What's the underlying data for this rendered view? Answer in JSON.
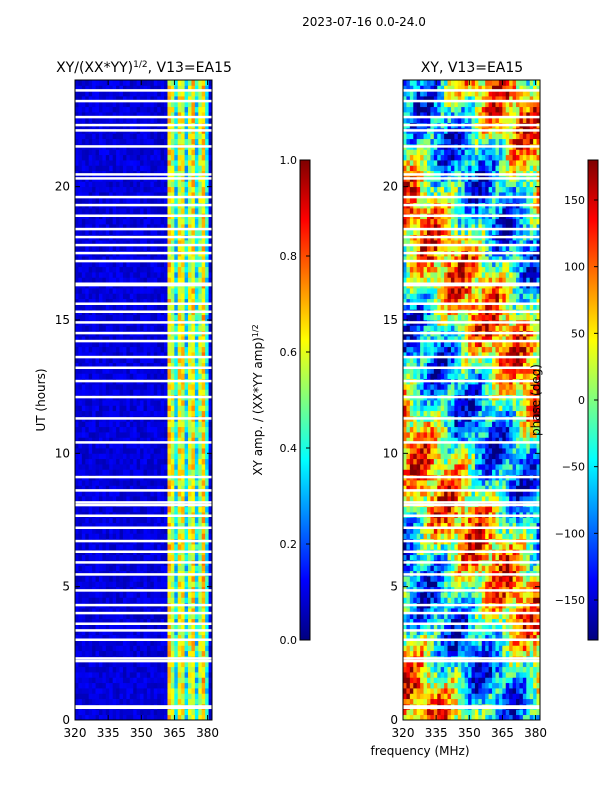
{
  "suptitle": "2023-07-16 0.0-24.0",
  "colors": {
    "jet": [
      "#00007f",
      "#0000ff",
      "#007fff",
      "#00ffff",
      "#7fff7f",
      "#ffff00",
      "#ff7f00",
      "#ff0000",
      "#7f0000"
    ],
    "flagged": "#ffffff",
    "axis": "#000000"
  },
  "chart_data": [
    {
      "type": "heatmap",
      "title_main": "XY/(XX*YY)",
      "title_sup": "1/2",
      "title_tail": ", V13=EA15",
      "xlabel": "",
      "ylabel": "UT (hours)",
      "xlim": [
        320,
        382
      ],
      "ylim": [
        0,
        24
      ],
      "x_ticks": [
        320,
        335,
        350,
        365,
        380
      ],
      "x_tick_labels": [
        "320",
        "335",
        "350",
        "365",
        "380"
      ],
      "y_ticks": [
        0,
        5,
        10,
        15,
        20
      ],
      "y_tick_labels": [
        "0",
        "5",
        "10",
        "15",
        "20"
      ],
      "colorbar": {
        "label_main": "XY amp. / (XX*YY amp)",
        "label_sup": "1/2",
        "range": [
          0.0,
          1.0
        ],
        "ticks": [
          0.0,
          0.2,
          0.4,
          0.6,
          0.8,
          1.0
        ],
        "tick_labels": [
          "0.0",
          "0.2",
          "0.4",
          "0.6",
          "0.8",
          "1.0"
        ]
      }
    },
    {
      "type": "heatmap",
      "title_main": "XY, V13=EA15",
      "xlabel": "frequency (MHz)",
      "ylabel": "",
      "xlim": [
        320,
        382
      ],
      "ylim": [
        0,
        24
      ],
      "x_ticks": [
        320,
        335,
        350,
        365,
        380
      ],
      "x_tick_labels": [
        "320",
        "335",
        "350",
        "365",
        "380"
      ],
      "y_ticks": [
        0,
        5,
        10,
        15,
        20
      ],
      "y_tick_labels": [
        "0",
        "5",
        "10",
        "15",
        "20"
      ],
      "colorbar": {
        "label_main": "phase (deg)",
        "range": [
          -180,
          180
        ],
        "ticks": [
          -150,
          -100,
          -50,
          0,
          50,
          100,
          150
        ],
        "tick_labels": [
          "−150",
          "−100",
          "−50",
          "0",
          "50",
          "100",
          "150"
        ]
      }
    }
  ]
}
